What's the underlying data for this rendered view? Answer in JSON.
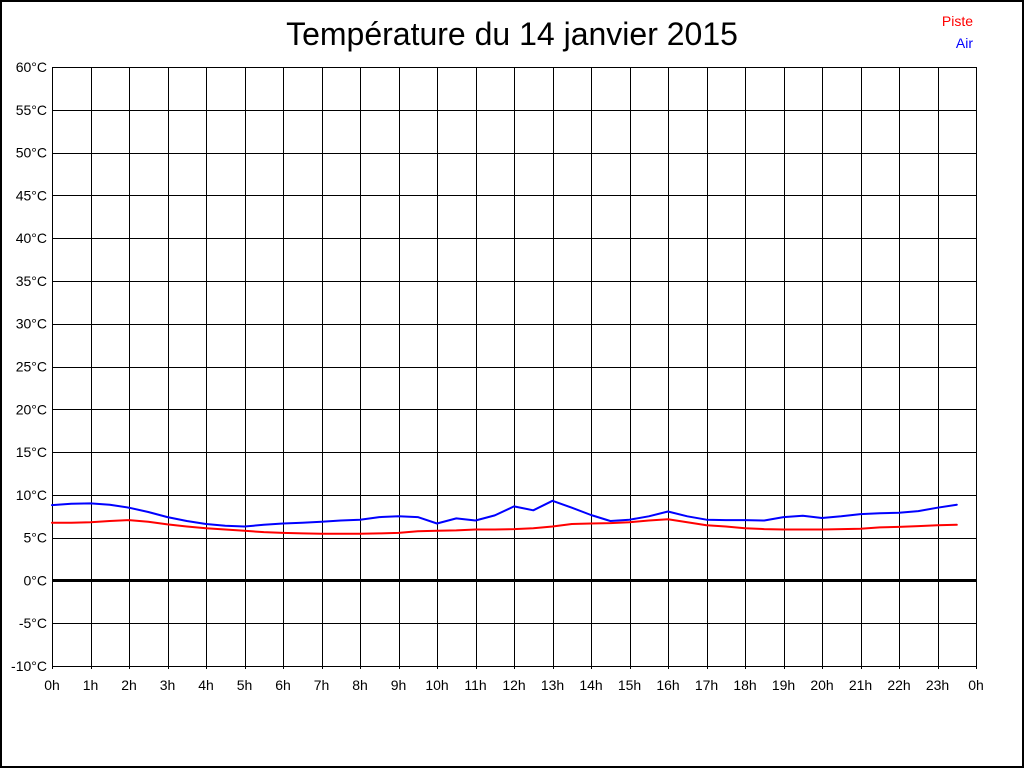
{
  "title": "Température du 14 janvier 2015",
  "legend": {
    "piste": {
      "label": "Piste",
      "color": "#ff0000"
    },
    "air": {
      "label": "Air",
      "color": "#0000ff"
    }
  },
  "colors": {
    "background": "#ffffff",
    "grid": "#000000",
    "zero_line": "#000000",
    "text": "#000000"
  },
  "chart_data": {
    "type": "line",
    "title": "Température du 14 janvier 2015",
    "xlabel": "",
    "ylabel": "",
    "grid": true,
    "legend_position": "top-right",
    "xlim": [
      0,
      24
    ],
    "ylim": [
      -10,
      60
    ],
    "y_tick_step": 5,
    "y_tick_labels": [
      "-10°C",
      "-5°C",
      "0°C",
      "5°C",
      "10°C",
      "15°C",
      "20°C",
      "25°C",
      "30°C",
      "35°C",
      "40°C",
      "45°C",
      "50°C",
      "55°C",
      "60°C"
    ],
    "x_tick_labels": [
      "0h",
      "1h",
      "2h",
      "3h",
      "4h",
      "5h",
      "6h",
      "7h",
      "8h",
      "9h",
      "10h",
      "11h",
      "12h",
      "13h",
      "14h",
      "15h",
      "16h",
      "17h",
      "18h",
      "19h",
      "20h",
      "21h",
      "22h",
      "23h",
      "0h"
    ],
    "zero_line": true,
    "x": [
      0,
      0.5,
      1,
      1.5,
      2,
      2.5,
      3,
      3.5,
      4,
      4.5,
      5,
      5.5,
      6,
      6.5,
      7,
      7.5,
      8,
      8.5,
      9,
      9.5,
      10,
      10.5,
      11,
      11.5,
      12,
      12.5,
      13,
      13.5,
      14,
      14.5,
      15,
      15.5,
      16,
      16.5,
      17,
      17.5,
      18,
      18.5,
      19,
      19.5,
      20,
      20.5,
      21,
      21.5,
      22,
      22.5,
      23,
      23.5
    ],
    "series": [
      {
        "name": "Piste",
        "color": "#ff0000",
        "values": [
          6.75,
          6.75,
          6.8,
          6.95,
          7.05,
          6.85,
          6.55,
          6.3,
          6.1,
          5.95,
          5.8,
          5.65,
          5.55,
          5.5,
          5.45,
          5.45,
          5.45,
          5.5,
          5.55,
          5.75,
          5.8,
          5.85,
          5.95,
          5.95,
          6.0,
          6.1,
          6.3,
          6.6,
          6.65,
          6.7,
          6.8,
          7.0,
          7.15,
          6.8,
          6.45,
          6.3,
          6.1,
          6.0,
          5.95,
          5.95,
          5.95,
          6.0,
          6.05,
          6.2,
          6.25,
          6.35,
          6.45,
          6.5
        ]
      },
      {
        "name": "Air",
        "color": "#0000ff",
        "values": [
          8.8,
          8.95,
          9.0,
          8.85,
          8.5,
          8.0,
          7.4,
          6.95,
          6.6,
          6.4,
          6.3,
          6.5,
          6.65,
          6.75,
          6.85,
          7.0,
          7.1,
          7.4,
          7.5,
          7.4,
          6.65,
          7.25,
          7.0,
          7.6,
          8.65,
          8.2,
          9.3,
          8.5,
          7.65,
          6.95,
          7.1,
          7.5,
          8.05,
          7.5,
          7.1,
          7.05,
          7.05,
          7.0,
          7.4,
          7.55,
          7.3,
          7.5,
          7.75,
          7.85,
          7.9,
          8.1,
          8.5,
          8.85
        ]
      }
    ]
  }
}
